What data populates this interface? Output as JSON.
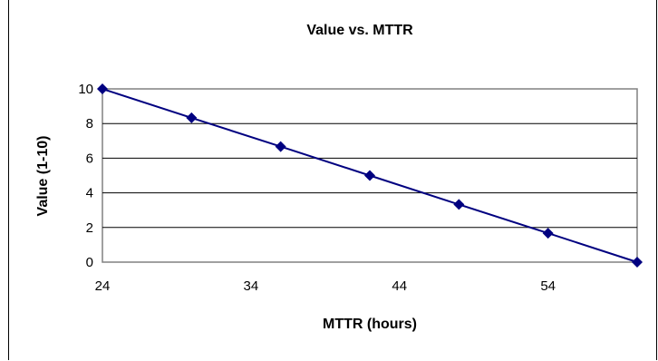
{
  "chart_data": {
    "type": "line",
    "title": "Value vs. MTTR",
    "xlabel": "MTTR (hours)",
    "ylabel": "Value (1-10)",
    "xlim": [
      24,
      60
    ],
    "ylim": [
      0,
      10
    ],
    "x_ticks": [
      "24",
      "34",
      "44",
      "54"
    ],
    "y_ticks": [
      "0",
      "2",
      "4",
      "6",
      "8",
      "10"
    ],
    "grid": true,
    "series": [
      {
        "x": [
          24,
          30,
          36,
          42,
          48,
          54,
          60
        ],
        "y": [
          10,
          8.33,
          6.67,
          5,
          3.33,
          1.67,
          0
        ],
        "marker": "diamond",
        "color": "#000080"
      }
    ]
  }
}
